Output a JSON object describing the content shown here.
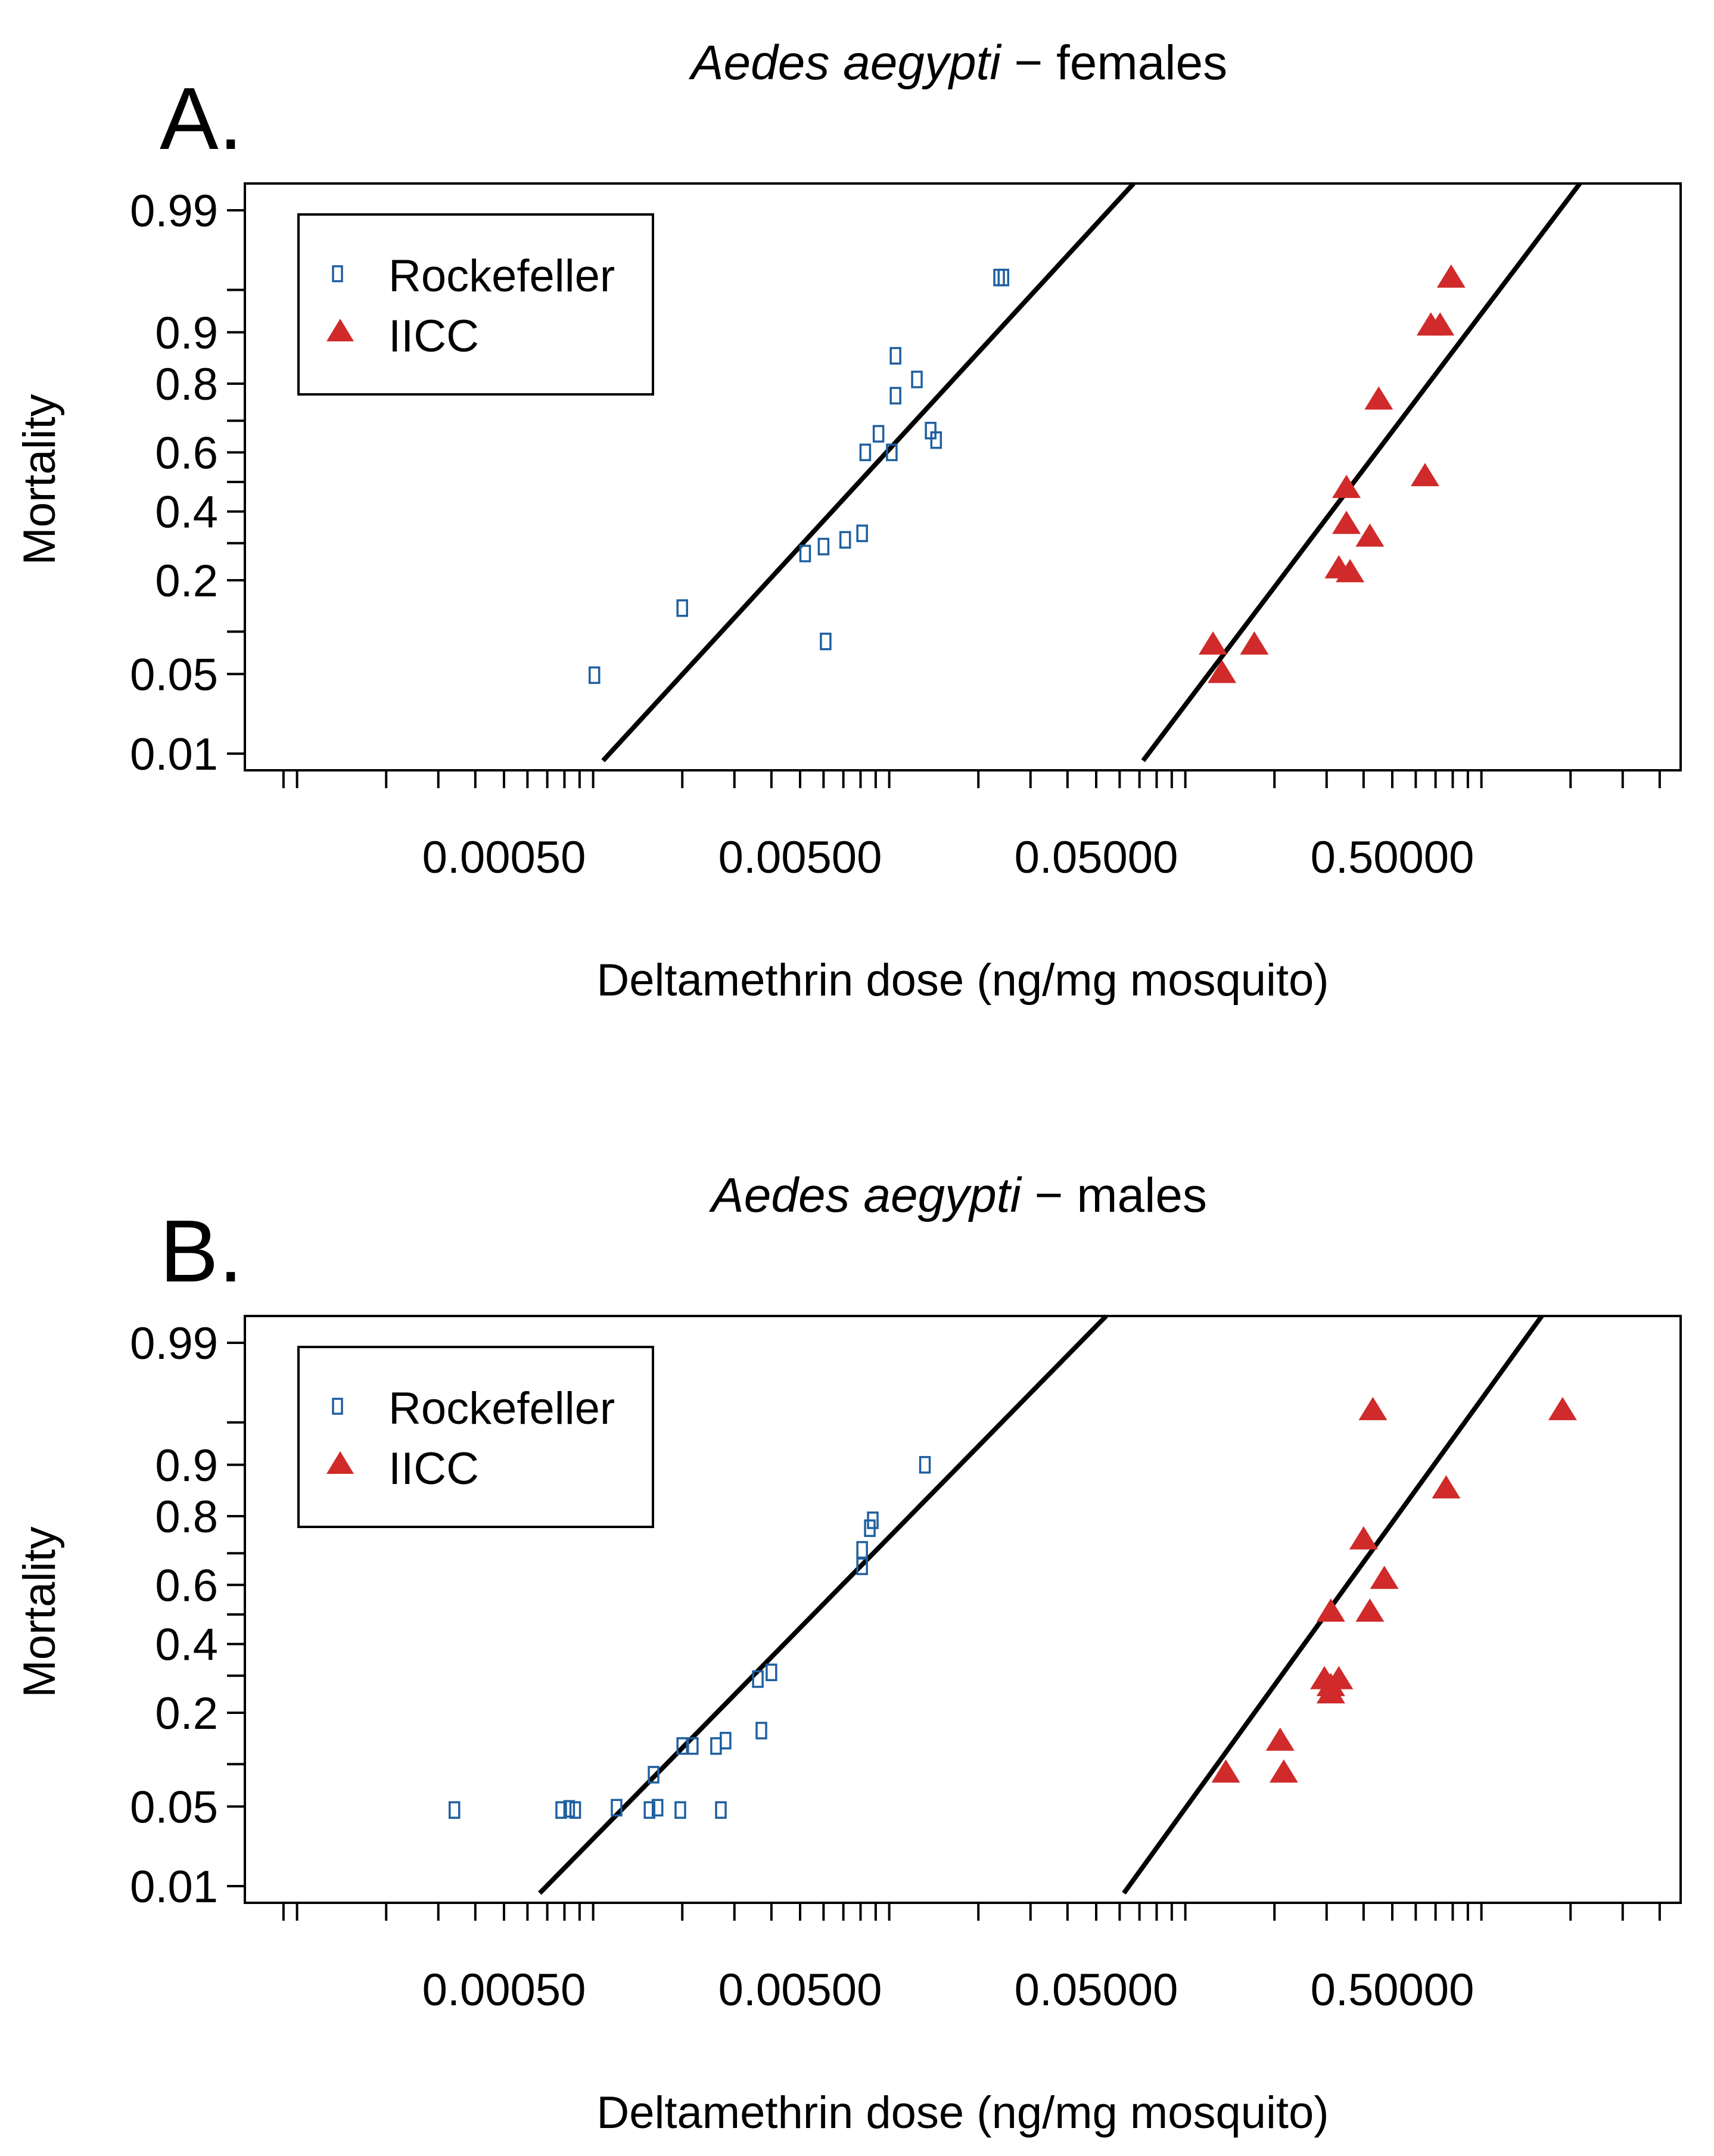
{
  "chart_data": [
    {
      "type": "scatter",
      "panel_label": "A.",
      "title_italic": "Aedes aegypti",
      "title_rest": " − females",
      "xlabel": "Deltamethrin dose (ng/mg mosquito)",
      "ylabel": "Mortality",
      "x_scale": "log10",
      "y_scale": "probit",
      "xlim": [
        5e-05,
        5.0
      ],
      "ylim": [
        0.0085,
        0.995
      ],
      "x_tick_labels": [
        "0.00050",
        "0.00500",
        "0.05000",
        "0.50000"
      ],
      "x_tick_values": [
        0.0005,
        0.005,
        0.05,
        0.5
      ],
      "y_tick_labels": [
        "0.01",
        "0.05",
        "0.2",
        "0.4",
        "0.6",
        "0.8",
        "0.9",
        "0.99"
      ],
      "y_tick_values": [
        0.01,
        0.05,
        0.2,
        0.4,
        0.6,
        0.8,
        0.9,
        0.99
      ],
      "y_minor_ticks": [
        0.1,
        0.3,
        0.5,
        0.7,
        0.95
      ],
      "legend": [
        {
          "name": "Rockefeller",
          "marker": "open-square",
          "color": "#1f5fa0"
        },
        {
          "name": "IICC",
          "marker": "filled-triangle",
          "color": "#d02a2a"
        }
      ],
      "series": [
        {
          "name": "Rockefeller",
          "points": [
            [
              0.00101,
              0.049
            ],
            [
              0.002,
              0.14
            ],
            [
              0.0061,
              0.086
            ],
            [
              0.0052,
              0.27
            ],
            [
              0.006,
              0.29
            ],
            [
              0.0071,
              0.31
            ],
            [
              0.0081,
              0.33
            ],
            [
              0.0083,
              0.6
            ],
            [
              0.0092,
              0.66
            ],
            [
              0.0102,
              0.6
            ],
            [
              0.0105,
              0.77
            ],
            [
              0.0105,
              0.86
            ],
            [
              0.0124,
              0.81
            ],
            [
              0.0138,
              0.67
            ],
            [
              0.0144,
              0.64
            ],
            [
              0.0235,
              0.96
            ],
            [
              0.0243,
              0.96
            ]
          ],
          "fit_line": {
            "x": [
              0.00108,
              0.068
            ],
            "y": [
              0.0085,
              0.995
            ]
          }
        },
        {
          "name": "IICC",
          "points": [
            [
              0.124,
              0.082
            ],
            [
              0.133,
              0.051
            ],
            [
              0.171,
              0.082
            ],
            [
              0.33,
              0.23
            ],
            [
              0.36,
              0.22
            ],
            [
              0.35,
              0.36
            ],
            [
              0.35,
              0.48
            ],
            [
              0.42,
              0.32
            ],
            [
              0.45,
              0.76
            ],
            [
              0.645,
              0.52
            ],
            [
              0.675,
              0.91
            ],
            [
              0.725,
              0.91
            ],
            [
              0.79,
              0.96
            ]
          ],
          "fit_line": {
            "x": [
              0.072,
              2.18
            ],
            "y": [
              0.0085,
              0.995
            ]
          }
        }
      ]
    },
    {
      "type": "scatter",
      "panel_label": "B.",
      "title_italic": "Aedes aegypti",
      "title_rest": " − males",
      "xlabel": "Deltamethrin dose (ng/mg mosquito)",
      "ylabel": "Mortality",
      "x_scale": "log10",
      "y_scale": "probit",
      "xlim": [
        5e-05,
        5.0
      ],
      "ylim": [
        0.0085,
        0.995
      ],
      "x_tick_labels": [
        "0.00050",
        "0.00500",
        "0.05000",
        "0.50000"
      ],
      "x_tick_values": [
        0.0005,
        0.005,
        0.05,
        0.5
      ],
      "y_tick_labels": [
        "0.01",
        "0.05",
        "0.2",
        "0.4",
        "0.6",
        "0.8",
        "0.9",
        "0.99"
      ],
      "y_tick_values": [
        0.01,
        0.05,
        0.2,
        0.4,
        0.6,
        0.8,
        0.9,
        0.99
      ],
      "y_minor_ticks": [
        0.1,
        0.3,
        0.5,
        0.7,
        0.95
      ],
      "legend": [
        {
          "name": "Rockefeller",
          "marker": "open-square",
          "color": "#1f5fa0"
        },
        {
          "name": "IICC",
          "marker": "filled-triangle",
          "color": "#d02a2a"
        }
      ],
      "series": [
        {
          "name": "Rockefeller",
          "points": [
            [
              0.00034,
              0.047
            ],
            [
              0.00078,
              0.047
            ],
            [
              0.00083,
              0.048
            ],
            [
              0.00087,
              0.047
            ],
            [
              0.0012,
              0.049
            ],
            [
              0.00155,
              0.047
            ],
            [
              0.00165,
              0.049
            ],
            [
              0.00197,
              0.047
            ],
            [
              0.0016,
              0.085
            ],
            [
              0.002,
              0.13
            ],
            [
              0.00217,
              0.13
            ],
            [
              0.0027,
              0.047
            ],
            [
              0.0026,
              0.13
            ],
            [
              0.0028,
              0.14
            ],
            [
              0.0037,
              0.16
            ],
            [
              0.0036,
              0.29
            ],
            [
              0.004,
              0.31
            ],
            [
              0.0081,
              0.66
            ],
            [
              0.0081,
              0.71
            ],
            [
              0.0086,
              0.77
            ],
            [
              0.0088,
              0.79
            ],
            [
              0.0132,
              0.9
            ]
          ],
          "fit_line": {
            "x": [
              0.00066,
              0.055
            ],
            "y": [
              0.0085,
              0.995
            ]
          }
        },
        {
          "name": "IICC",
          "points": [
            [
              0.137,
              0.088
            ],
            [
              0.209,
              0.14
            ],
            [
              0.215,
              0.088
            ],
            [
              0.295,
              0.29
            ],
            [
              0.31,
              0.25
            ],
            [
              0.31,
              0.27
            ],
            [
              0.31,
              0.51
            ],
            [
              0.33,
              0.29
            ],
            [
              0.4,
              0.74
            ],
            [
              0.42,
              0.51
            ],
            [
              0.43,
              0.96
            ],
            [
              0.47,
              0.62
            ],
            [
              0.76,
              0.86
            ],
            [
              1.88,
              0.96
            ]
          ],
          "fit_line": {
            "x": [
              0.062,
              1.62
            ],
            "y": [
              0.0085,
              0.995
            ]
          }
        }
      ]
    }
  ]
}
